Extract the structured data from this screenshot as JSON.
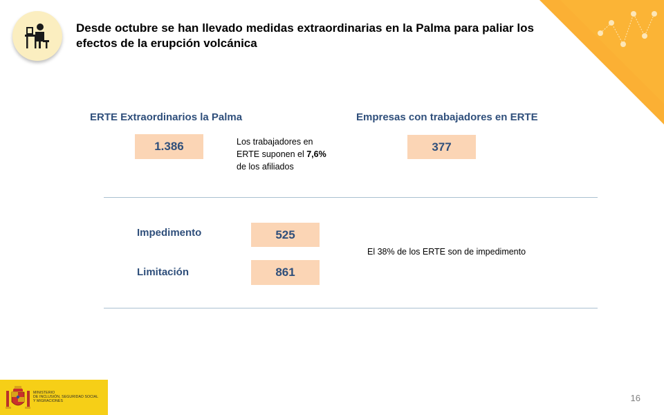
{
  "header": {
    "title": "Desde octubre se han llevado medidas extraordinarias en la Palma para paliar los efectos de la erupción volcánica",
    "icon": "worker-at-desk-icon"
  },
  "top_left": {
    "heading": "ERTE Extraordinarios la Palma",
    "value": "1.386",
    "note_line1": "Los trabajadores en",
    "note_line2_prefix": "ERTE suponen el ",
    "note_line2_bold": "7,6%",
    "note_line3": "de los afiliados"
  },
  "top_right": {
    "heading": "Empresas con trabajadores en ERTE",
    "value": "377"
  },
  "breakdown": {
    "impedimento_label": "Impedimento",
    "impedimento_value": "525",
    "limitacion_label": "Limitación",
    "limitacion_value": "861",
    "note": "El 38% de los ERTE son de impedimento"
  },
  "footer": {
    "ministry_line1": "MINISTERIO",
    "ministry_line2": "DE INCLUSIÓN, SEGURIDAD SOCIAL",
    "ministry_line3": "Y MIGRACIONES",
    "page_number": "16"
  },
  "colors": {
    "heading_blue": "#2f4f7b",
    "value_box": "#fbd5b5",
    "accent_orange": "#fbb034",
    "ministry_yellow": "#f6cf17"
  }
}
